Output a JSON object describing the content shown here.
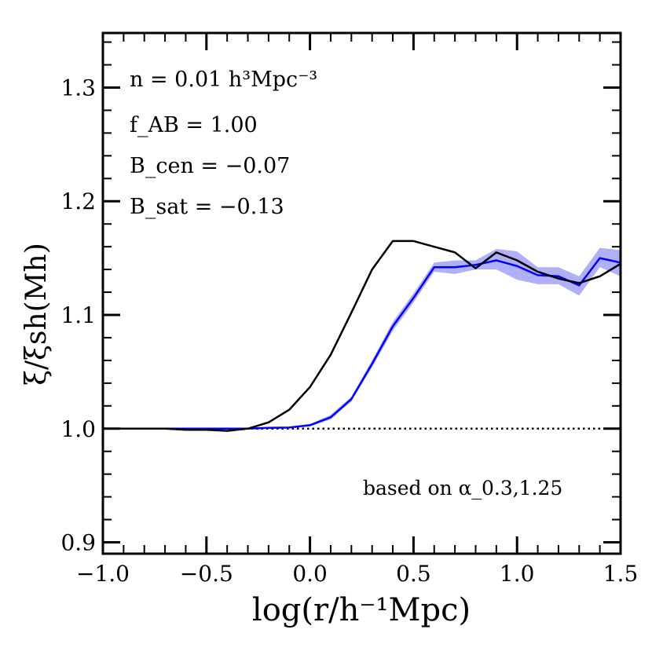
{
  "chart_data": {
    "type": "line",
    "xlabel": "log(r/h⁻¹Mpc)",
    "ylabel": "ξ/ξsh(Mh)",
    "xlim": [
      -1.0,
      1.5
    ],
    "ylim": [
      0.89,
      1.348
    ],
    "xticks": [
      "−1.0",
      "−0.5",
      "0.0",
      "0.5",
      "1.0",
      "1.5"
    ],
    "xtick_values": [
      -1.0,
      -0.5,
      0.0,
      0.5,
      1.0,
      1.5
    ],
    "yticks": [
      "0.9",
      "1.0",
      "1.1",
      "1.2",
      "1.3"
    ],
    "ytick_values": [
      0.9,
      1.0,
      1.1,
      1.2,
      1.3
    ],
    "grid": false,
    "annotations": {
      "density": "n = 0.01 h³Mpc⁻³",
      "fab": "f_AB = 1.00",
      "bcen": "B_cen = −0.07",
      "bsat": "B_sat = −0.13",
      "based_on": "based on α_0.3,1.25"
    },
    "reference_line": {
      "y": 1.0,
      "style": "dotted",
      "color": "#000000"
    },
    "x": [
      -1.0,
      -0.9,
      -0.8,
      -0.7,
      -0.6,
      -0.5,
      -0.4,
      -0.3,
      -0.2,
      -0.1,
      0.0,
      0.1,
      0.2,
      0.3,
      0.4,
      0.5,
      0.6,
      0.7,
      0.8,
      0.9,
      1.0,
      1.1,
      1.2,
      1.3,
      1.4,
      1.5
    ],
    "series": [
      {
        "color": "#000000",
        "values": [
          1.0,
          1.0,
          1.0,
          1.0,
          0.999,
          0.999,
          0.998,
          1.0,
          1.0055,
          1.0166,
          1.0366,
          1.065,
          1.102,
          1.14,
          1.165,
          1.165,
          1.16,
          1.155,
          1.141,
          1.155,
          1.148,
          1.138,
          1.132,
          1.128,
          1.134,
          1.145
        ]
      },
      {
        "color": "#0000ff",
        "band_color": "#b0b0f8",
        "values": [
          1.0,
          1.0,
          1.0,
          1.0,
          1.0,
          1.0,
          1.0,
          1.0,
          1.0007,
          1.001,
          1.003,
          1.01,
          1.026,
          1.057,
          1.09,
          1.115,
          1.142,
          1.142,
          1.144,
          1.148,
          1.143,
          1.135,
          1.134,
          1.126,
          1.15,
          1.146
        ],
        "lower": [
          1.0,
          1.0,
          1.0,
          1.0,
          1.0,
          1.0,
          1.0,
          1.0,
          1.0,
          1.0005,
          1.002,
          1.008,
          1.024,
          1.054,
          1.086,
          1.111,
          1.138,
          1.136,
          1.14,
          1.14,
          1.131,
          1.127,
          1.127,
          1.117,
          1.142,
          1.134
        ],
        "upper": [
          1.0,
          1.0,
          1.0,
          1.0,
          1.0,
          1.0,
          1.0,
          1.0,
          1.0014,
          1.0015,
          1.004,
          1.012,
          1.028,
          1.06,
          1.094,
          1.119,
          1.146,
          1.148,
          1.148,
          1.158,
          1.156,
          1.142,
          1.142,
          1.134,
          1.159,
          1.157
        ]
      }
    ]
  }
}
